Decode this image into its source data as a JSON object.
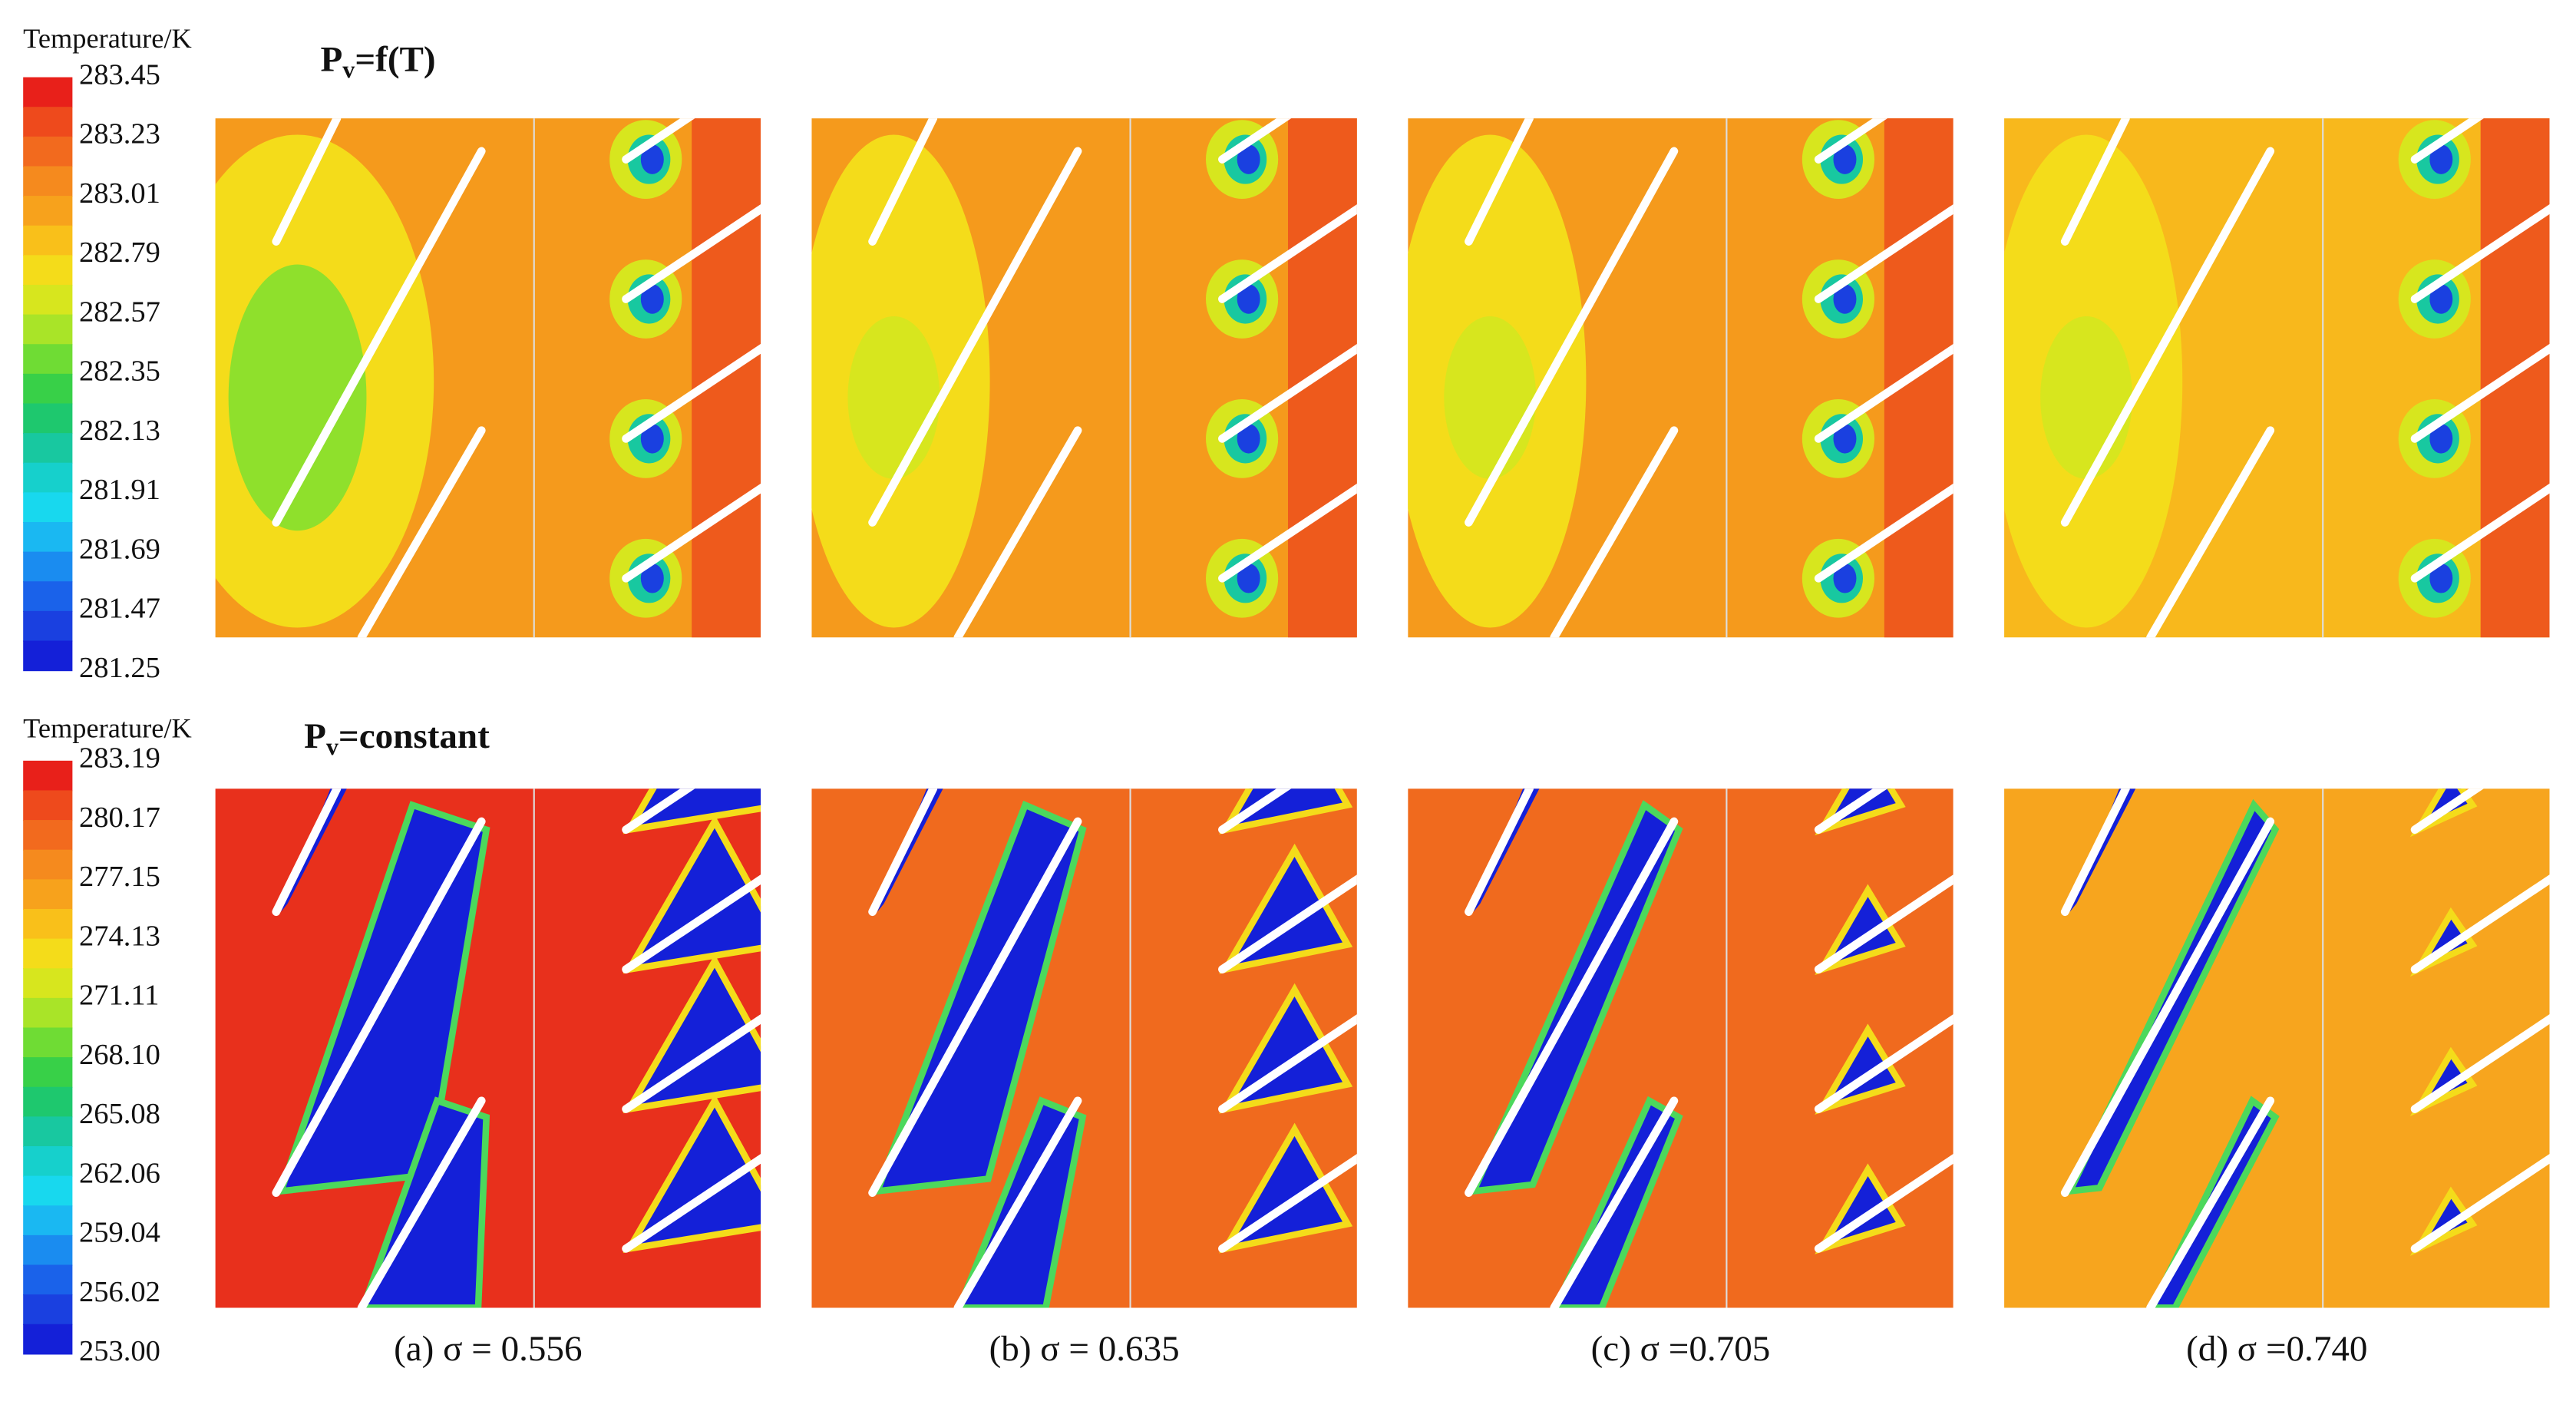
{
  "rows": [
    {
      "colorbar": {
        "title": "Temperature/K",
        "ticks": [
          "283.45",
          "283.23",
          "283.01",
          "282.79",
          "282.57",
          "282.35",
          "282.13",
          "281.91",
          "281.69",
          "281.47",
          "281.25"
        ]
      },
      "label": {
        "symbol": "P",
        "subscript": "v",
        "expression": "=f(T)"
      }
    },
    {
      "colorbar": {
        "title": "Temperature/K",
        "ticks": [
          "283.19",
          "280.17",
          "277.15",
          "274.13",
          "271.11",
          "268.10",
          "265.08",
          "262.06",
          "259.04",
          "256.02",
          "253.00"
        ]
      },
      "label": {
        "symbol": "P",
        "subscript": "v",
        "expression": "=constant"
      }
    }
  ],
  "captions": [
    "(a) σ = 0.556",
    "(b) σ = 0.635",
    "(c) σ =0.705",
    "(d) σ =0.740"
  ]
}
